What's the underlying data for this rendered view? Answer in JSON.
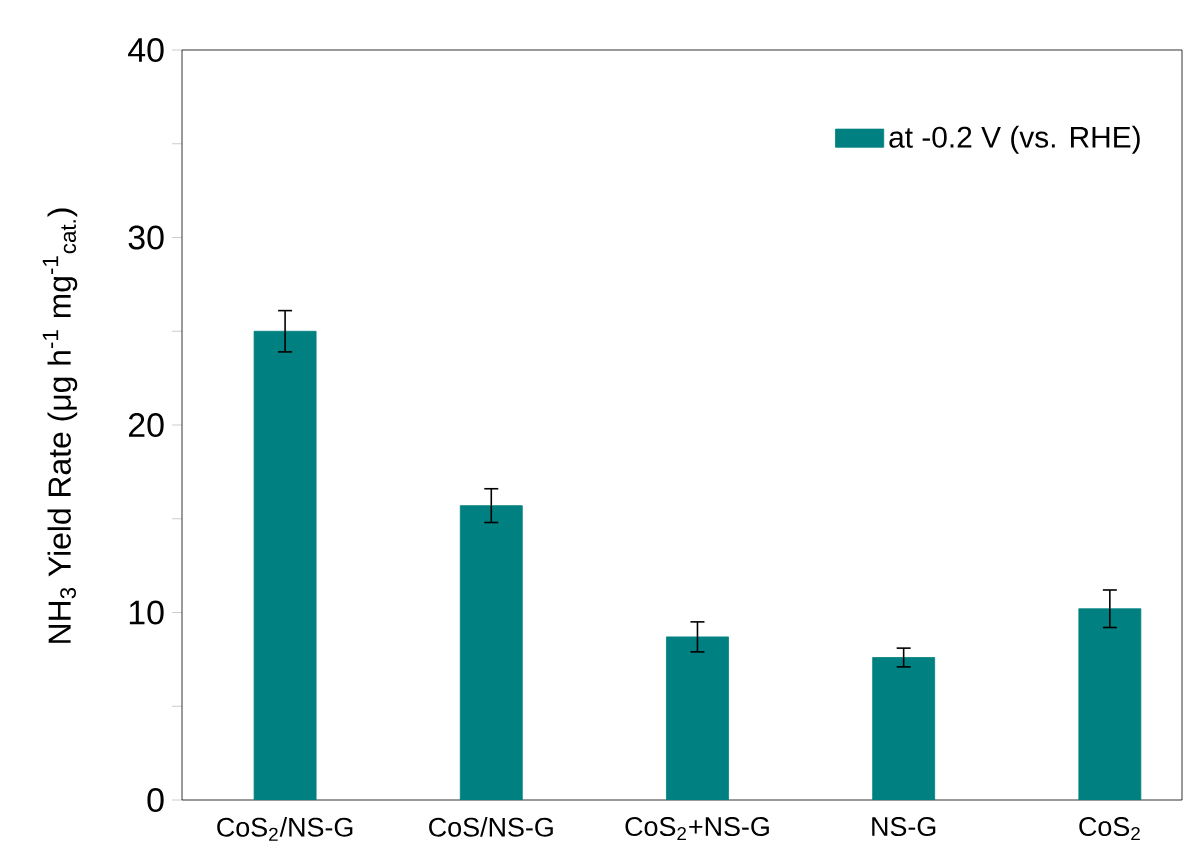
{
  "chart_data": {
    "type": "bar",
    "ylabel": "NH$_{3}$ Yield Rate (μg h$^{-1}$ mg$^{-1}$$_{cat.}$)",
    "categories": [
      "CoS$_{2}$/NS-G",
      "CoS/NS-G",
      "CoS$_{2}$+NS-G",
      "NS-G",
      "CoS$_{2}$"
    ],
    "series": [
      {
        "name": "at -0.2 V (vs. RHE)",
        "color": "#008080",
        "values": [
          25.0,
          15.7,
          8.7,
          7.6,
          10.2
        ],
        "errors": [
          1.1,
          0.9,
          0.8,
          0.5,
          1.0
        ]
      }
    ],
    "ylim": [
      0,
      40
    ],
    "yticks": [
      0,
      {
        "value": 5,
        "label": null
      },
      10,
      {
        "value": 15,
        "label": null
      },
      20,
      {
        "value": 25,
        "label": null
      },
      30,
      {
        "value": 35,
        "label": null
      },
      40
    ],
    "legend": "top right",
    "grid": false
  }
}
